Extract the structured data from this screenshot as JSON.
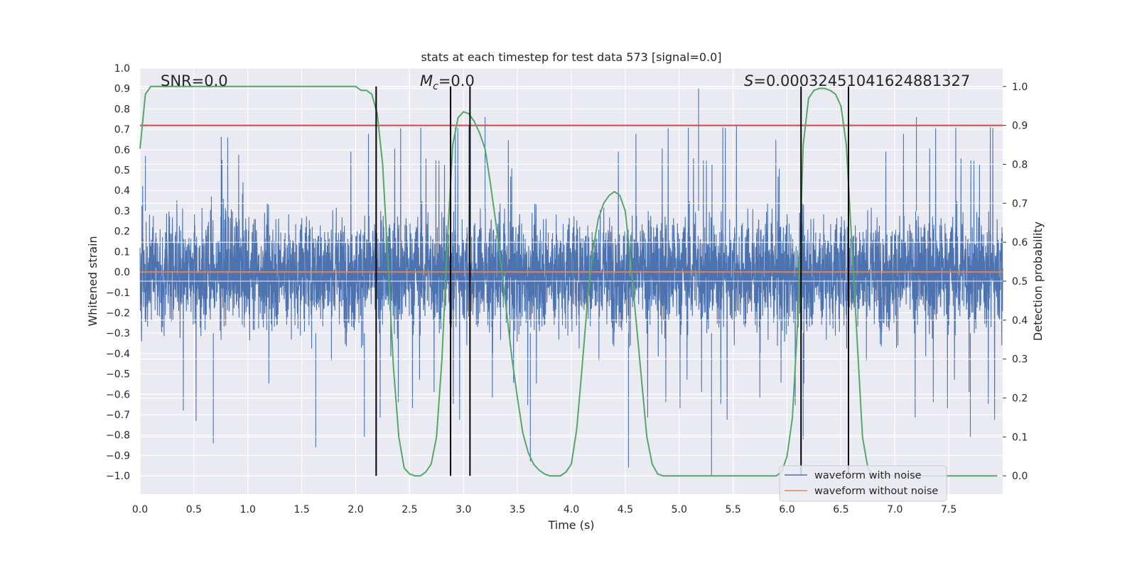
{
  "chart_data": {
    "type": "line",
    "title": "stats at each timestep for test data 573 [signal=0.0]",
    "xlabel": "Time (s)",
    "ylabel_left": "Whitened strain",
    "ylabel_right": "Detection probability",
    "xlim": [
      0.0,
      8.0
    ],
    "ylim_left": [
      -1.09,
      1.0
    ],
    "ylim_right": [
      -0.047,
      1.047
    ],
    "x_ticks": [
      "0.0",
      "0.5",
      "1.0",
      "1.5",
      "2.0",
      "2.5",
      "3.0",
      "3.5",
      "4.0",
      "4.5",
      "5.0",
      "5.5",
      "6.0",
      "6.5",
      "7.0",
      "7.5"
    ],
    "y_ticks_left": [
      "1.0",
      "0.9",
      "0.8",
      "0.7",
      "0.6",
      "0.5",
      "0.4",
      "0.3",
      "0.2",
      "0.1",
      "0.0",
      "−0.1",
      "−0.2",
      "−0.3",
      "−0.4",
      "−0.5",
      "−0.6",
      "−0.7",
      "−0.8",
      "−0.9",
      "−1.0"
    ],
    "y_ticks_right": [
      "1.0",
      "0.9",
      "0.8",
      "0.7",
      "0.6",
      "0.5",
      "0.4",
      "0.3",
      "0.2",
      "0.1",
      "0.0"
    ],
    "grid": true,
    "legend_position": "bottom-right",
    "annotations": {
      "snr": "SNR=0.0",
      "mc_symbol": "M",
      "mc_sub": "c",
      "mc_value": "=0.0",
      "s_symbol": "S",
      "s_value": "=0.00032451041624881327"
    },
    "threshold_right": 0.9,
    "vertical_lines_x": [
      2.19,
      2.88,
      3.06,
      6.13,
      6.57
    ],
    "vertical_line_yrange_right": [
      0.0,
      1.0
    ],
    "series": [
      {
        "name": "waveform with noise",
        "color": "#4c72b0",
        "axis": "left",
        "description_values": {
          "core_band": [
            -0.45,
            0.5
          ],
          "notable_peaks": [
            [
              0.05,
              0.57
            ],
            [
              2.19,
              0.65
            ],
            [
              2.88,
              0.85
            ],
            [
              3.06,
              0.8
            ],
            [
              5.18,
              0.9
            ],
            [
              3.2,
              0.76
            ],
            [
              7.2,
              0.76
            ]
          ],
          "notable_troughs": [
            [
              0.68,
              -0.84
            ],
            [
              1.63,
              -0.86
            ],
            [
              2.08,
              -0.81
            ],
            [
              3.62,
              -0.93
            ],
            [
              4.53,
              -0.96
            ],
            [
              5.3,
              -1.0
            ],
            [
              6.15,
              -0.82
            ],
            [
              7.7,
              -0.81
            ]
          ]
        }
      },
      {
        "name": "waveform without noise",
        "color": "#dd8452",
        "axis": "left",
        "x": [
          0.0,
          8.0
        ],
        "y": [
          0.0,
          0.0
        ]
      },
      {
        "name": "detection probability",
        "color": "#55a868",
        "axis": "right",
        "x": [
          0.0,
          0.05,
          0.1,
          0.15,
          0.2,
          0.4,
          0.8,
          1.2,
          1.6,
          1.9,
          2.0,
          2.05,
          2.1,
          2.15,
          2.2,
          2.25,
          2.3,
          2.35,
          2.4,
          2.45,
          2.5,
          2.55,
          2.6,
          2.65,
          2.7,
          2.75,
          2.8,
          2.85,
          2.9,
          2.95,
          3.0,
          3.05,
          3.1,
          3.15,
          3.2,
          3.25,
          3.3,
          3.35,
          3.4,
          3.45,
          3.5,
          3.55,
          3.6,
          3.65,
          3.7,
          3.75,
          3.8,
          3.85,
          3.9,
          3.95,
          4.0,
          4.05,
          4.1,
          4.15,
          4.2,
          4.25,
          4.3,
          4.35,
          4.4,
          4.45,
          4.5,
          4.55,
          4.6,
          4.65,
          4.7,
          4.75,
          4.8,
          4.85,
          5.0,
          5.5,
          5.9,
          5.95,
          6.0,
          6.05,
          6.1,
          6.15,
          6.2,
          6.25,
          6.3,
          6.35,
          6.4,
          6.45,
          6.5,
          6.55,
          6.6,
          6.65,
          6.7,
          6.75,
          6.8,
          6.85,
          6.9,
          7.0,
          7.5,
          7.95
        ],
        "y": [
          0.84,
          0.98,
          1.0,
          1.0,
          1.0,
          1.0,
          1.0,
          1.0,
          1.0,
          1.0,
          1.0,
          0.99,
          0.99,
          0.98,
          0.93,
          0.8,
          0.55,
          0.28,
          0.1,
          0.02,
          0.005,
          0.0,
          0.0,
          0.01,
          0.03,
          0.1,
          0.3,
          0.6,
          0.85,
          0.92,
          0.935,
          0.93,
          0.91,
          0.88,
          0.84,
          0.75,
          0.65,
          0.54,
          0.42,
          0.3,
          0.2,
          0.11,
          0.06,
          0.03,
          0.015,
          0.005,
          0.0,
          0.0,
          0.0,
          0.01,
          0.03,
          0.12,
          0.28,
          0.45,
          0.58,
          0.66,
          0.7,
          0.72,
          0.73,
          0.72,
          0.68,
          0.55,
          0.4,
          0.25,
          0.1,
          0.03,
          0.005,
          0.0,
          0.0,
          0.0,
          0.0,
          0.01,
          0.05,
          0.15,
          0.4,
          0.85,
          0.97,
          0.99,
          0.995,
          0.995,
          0.99,
          0.98,
          0.95,
          0.85,
          0.6,
          0.35,
          0.1,
          0.02,
          0.0,
          0.0,
          0.0,
          0.0,
          0.0,
          0.0
        ]
      }
    ]
  },
  "colors": {
    "plot_bg": "#eaeaf2",
    "grid": "#ffffff",
    "threshold": "#c44e52",
    "vline": "#000000"
  }
}
